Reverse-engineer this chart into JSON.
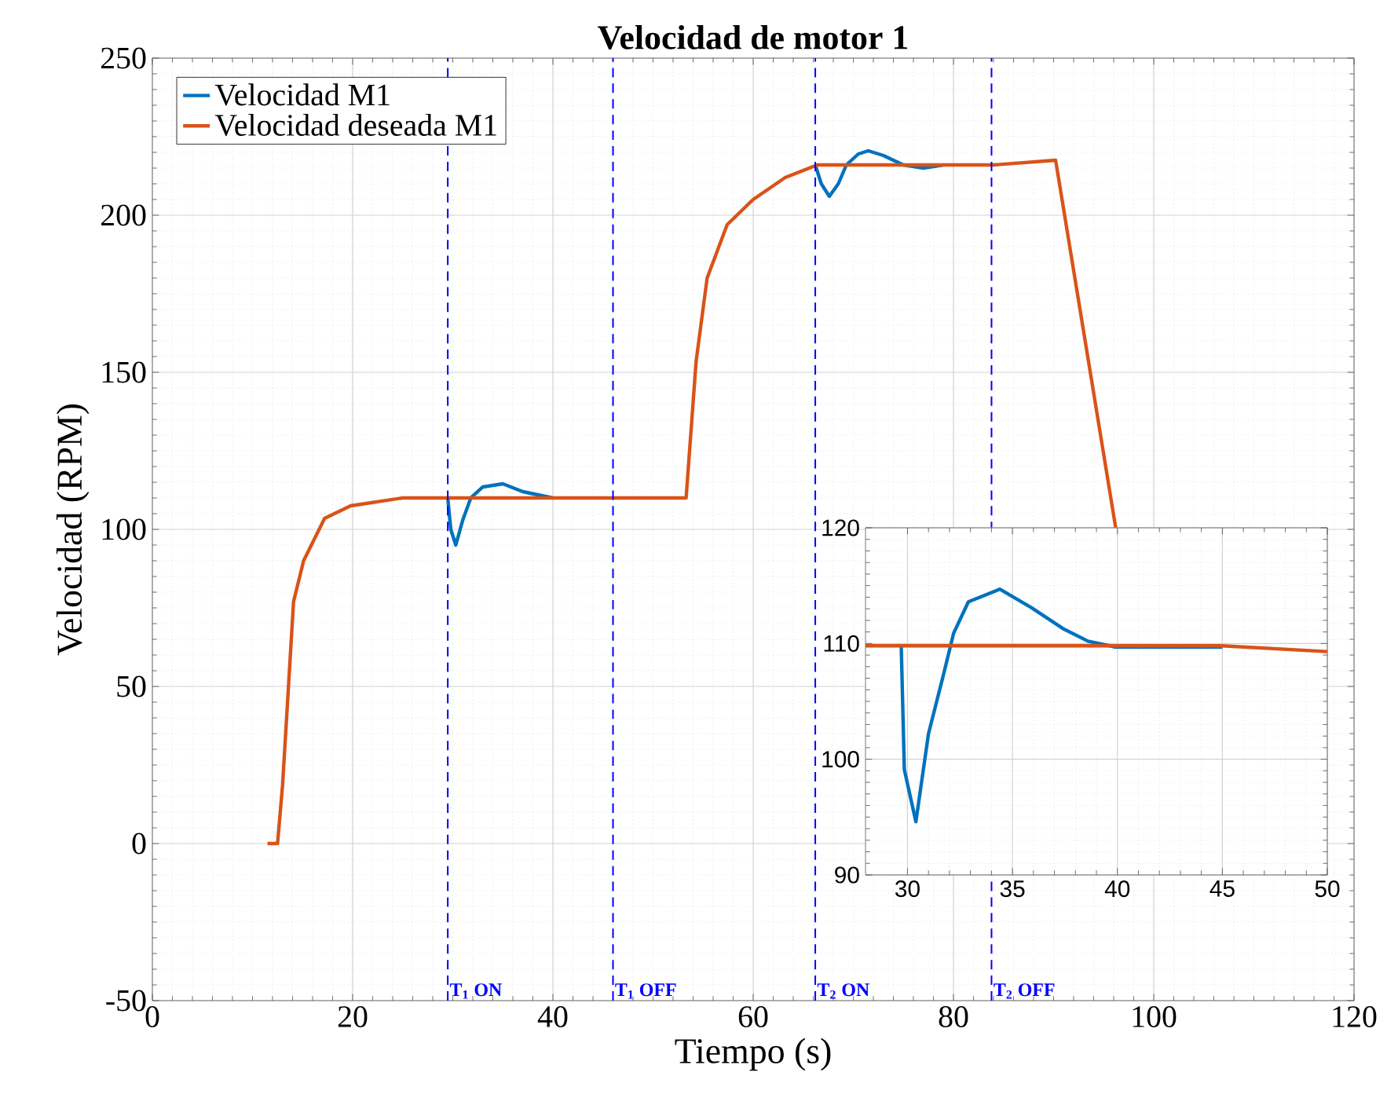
{
  "chart_data": [
    {
      "type": "line",
      "title": "Velocidad de motor 1",
      "xlabel": "Tiempo (s)",
      "ylabel": "Velocidad (RPM)",
      "xlim": [
        0,
        120
      ],
      "ylim": [
        -50,
        250
      ],
      "xticks": [
        0,
        20,
        40,
        60,
        80,
        100,
        120
      ],
      "yticks": [
        -50,
        0,
        50,
        100,
        150,
        200,
        250
      ],
      "grid": true,
      "legend": "top left",
      "series": [
        {
          "name": "Velocidad M1",
          "color": "#0072bd",
          "x": [
            29.5,
            29.8,
            30.3,
            31,
            31.8,
            33,
            35,
            37,
            40,
            50,
            66.2,
            66.8,
            67.6,
            68.5,
            69.3,
            70.5,
            71.5,
            73,
            75,
            77,
            79
          ],
          "values": [
            110,
            100,
            95,
            103,
            110,
            113.5,
            114.5,
            112,
            110,
            null,
            216,
            210,
            206,
            210,
            216,
            219.5,
            220.5,
            219,
            216,
            215,
            216
          ]
        },
        {
          "name": "Velocidad deseada M1",
          "color": "#d95319",
          "x": [
            11.5,
            12.5,
            13,
            14.1,
            15.1,
            17.2,
            19.8,
            25,
            30,
            40,
            53.3,
            54.3,
            55.4,
            57.4,
            60,
            63.2,
            66.4,
            75,
            84,
            90.2,
            96.2
          ],
          "values": [
            0,
            0,
            18.5,
            77,
            90,
            103.5,
            107.5,
            110,
            110,
            110,
            110,
            153.5,
            180,
            197,
            205,
            212,
            216,
            216,
            216,
            217.5,
            100.5
          ]
        }
      ],
      "ref_lines": [
        {
          "axis": "x",
          "value": 29.5,
          "label": "T$_{1}$ ON",
          "color": "#0000ff",
          "line_style": "dashed"
        },
        {
          "axis": "x",
          "value": 46,
          "label": "T$_{1}$ OFF",
          "color": "#0000ff",
          "line_style": "dashed"
        },
        {
          "axis": "x",
          "value": 66.2,
          "label": "T$_{2}$ ON",
          "color": "#0000ff",
          "line_style": "dashed"
        },
        {
          "axis": "x",
          "value": 83.8,
          "label": "T$_{2}$ OFF",
          "color": "#0000ff",
          "line_style": "dashed"
        }
      ]
    },
    {
      "type": "line",
      "xlim": [
        28,
        50
      ],
      "ylim": [
        90,
        120
      ],
      "xticks": [
        30,
        35,
        40,
        45,
        50
      ],
      "yticks": [
        90,
        100,
        110,
        120
      ],
      "grid": true,
      "series": [
        {
          "color": "#0072bd",
          "x": [
            29.7,
            29.85,
            30.4,
            31.0,
            31.7,
            32.2,
            32.9,
            34.4,
            35.9,
            37.4,
            38.6,
            39.9,
            45
          ],
          "values": [
            109.9,
            99.1,
            94.6,
            102.2,
            107.2,
            110.9,
            113.6,
            114.7,
            113.1,
            111.3,
            110.2,
            109.7,
            109.7
          ]
        },
        {
          "color": "#d95319",
          "x": [
            28,
            29.7,
            45,
            50
          ],
          "values": [
            109.8,
            109.8,
            109.8,
            109.3
          ]
        }
      ]
    }
  ]
}
